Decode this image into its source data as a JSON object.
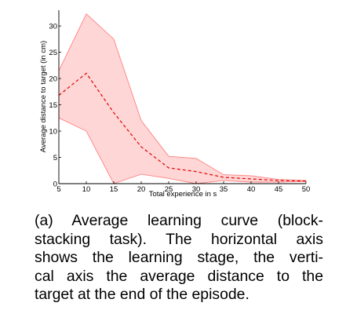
{
  "chart_data": {
    "type": "line",
    "title": "",
    "xlabel": "Total experience in s",
    "ylabel": "Average distance to target (in cm)",
    "xlim": [
      5,
      50
    ],
    "ylim": [
      0,
      33
    ],
    "x": [
      5,
      10,
      15,
      20,
      25,
      30,
      35,
      40,
      45,
      50
    ],
    "xticks": [
      5,
      10,
      15,
      20,
      25,
      30,
      35,
      40,
      45,
      50
    ],
    "yticks": [
      0,
      5,
      10,
      15,
      20,
      25,
      30
    ],
    "series": [
      {
        "type": "band",
        "upper": [
          21.5,
          32.3,
          27.5,
          12.0,
          5.2,
          4.8,
          1.7,
          1.5,
          0.8,
          0.6
        ],
        "lower": [
          12.5,
          10.0,
          0.0,
          1.8,
          1.0,
          0.0,
          0.6,
          0.3,
          0.3,
          0.4
        ],
        "color": "#ffd6d6",
        "edge_color": "#ff8080"
      },
      {
        "type": "mean",
        "values": [
          16.8,
          21.0,
          13.5,
          7.0,
          3.0,
          2.3,
          1.2,
          0.9,
          0.6,
          0.5
        ],
        "color": "#e00000",
        "style": "dashed"
      }
    ],
    "grid": false
  },
  "caption": {
    "lines": [
      "(a) Average learning curve (block-",
      "stacking task). The horizontal axis",
      "shows the learning stage, the verti-",
      "cal axis the average distance to the",
      "target at the end of the episode."
    ]
  }
}
